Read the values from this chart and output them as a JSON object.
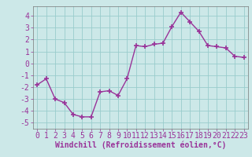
{
  "x": [
    0,
    1,
    2,
    3,
    4,
    5,
    6,
    7,
    8,
    9,
    10,
    11,
    12,
    13,
    14,
    15,
    16,
    17,
    18,
    19,
    20,
    21,
    22,
    23
  ],
  "y": [
    -1.8,
    -1.3,
    -3.0,
    -3.3,
    -4.3,
    -4.5,
    -4.5,
    -2.4,
    -2.3,
    -2.7,
    -1.3,
    1.5,
    1.4,
    1.6,
    1.7,
    3.1,
    4.3,
    3.5,
    2.7,
    1.5,
    1.4,
    1.3,
    0.6,
    0.5
  ],
  "line_color": "#993399",
  "marker": "+",
  "marker_size": 4,
  "line_width": 1.0,
  "bg_color": "#cce8e8",
  "grid_color": "#99cccc",
  "xlabel": "Windchill (Refroidissement éolien,°C)",
  "xlabel_fontsize": 7,
  "tick_fontsize": 7,
  "ylim": [
    -5.5,
    4.8
  ],
  "yticks": [
    -5,
    -4,
    -3,
    -2,
    -1,
    0,
    1,
    2,
    3,
    4
  ],
  "xlim": [
    -0.5,
    23.5
  ],
  "xticks": [
    0,
    1,
    2,
    3,
    4,
    5,
    6,
    7,
    8,
    9,
    10,
    11,
    12,
    13,
    14,
    15,
    16,
    17,
    18,
    19,
    20,
    21,
    22,
    23
  ]
}
